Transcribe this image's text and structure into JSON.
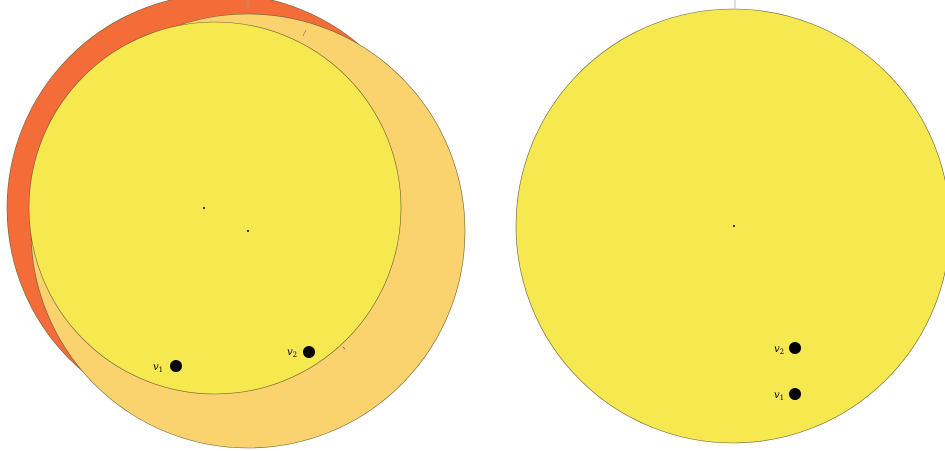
{
  "colors": {
    "red_disc": "#f46d38",
    "orange_disc": "#fad36e",
    "yellow_disc": "#f6e84f",
    "outline": "#6b5f3a",
    "vertex": "#000000",
    "background": "#ffffff"
  },
  "left_panel": {
    "vertices": [
      {
        "name": "v",
        "subscript": "1"
      },
      {
        "name": "v",
        "subscript": "2"
      }
    ]
  },
  "right_panel": {
    "vertices": [
      {
        "name": "v",
        "subscript": "2"
      },
      {
        "name": "v",
        "subscript": "1"
      }
    ]
  }
}
